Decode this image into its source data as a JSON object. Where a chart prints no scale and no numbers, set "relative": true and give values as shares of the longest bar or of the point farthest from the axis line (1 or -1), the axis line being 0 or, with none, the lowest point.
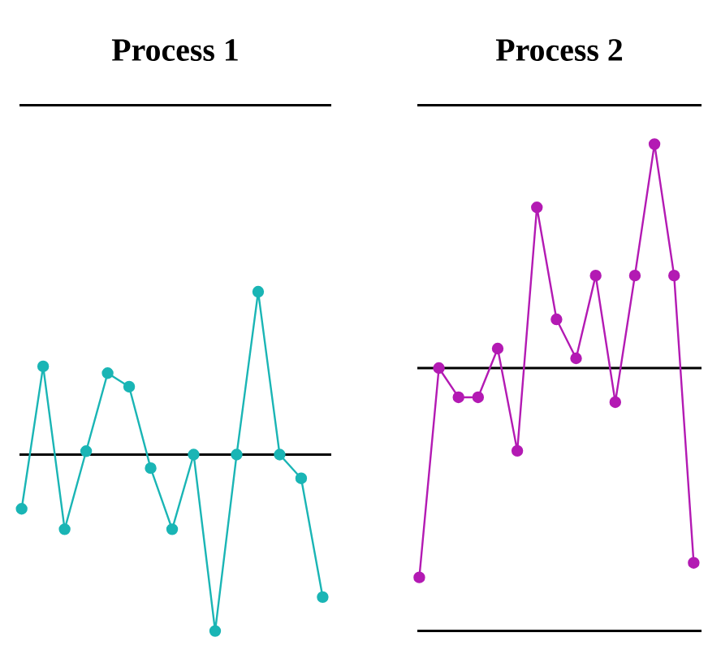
{
  "chart_data": [
    {
      "type": "line",
      "title": "Process 1",
      "categories": [
        null,
        null,
        null,
        null,
        null,
        null,
        null,
        null,
        null,
        null,
        null,
        null,
        null,
        null,
        null
      ],
      "relative": true,
      "marker": "circle",
      "line_style": "solid",
      "series": [
        {
          "color": "#1ab5b5",
          "values": [
            0.36,
            0.78,
            0.3,
            0.53,
            0.76,
            0.72,
            0.48,
            0.3,
            0.52,
            0,
            0.52,
            1,
            0.52,
            0.45,
            0.1
          ]
        }
      ],
      "ref_lines": [
        {
          "axis": "y",
          "value": 1.55,
          "color": "#000000"
        },
        {
          "axis": "y",
          "value": 0.52,
          "color": "#000000"
        }
      ]
    },
    {
      "type": "line",
      "title": "Process 2",
      "categories": [
        null,
        null,
        null,
        null,
        null,
        null,
        null,
        null,
        null,
        null,
        null,
        null,
        null,
        null,
        null
      ],
      "relative": true,
      "marker": "circle",
      "line_style": "solid",
      "series": [
        {
          "color": "#b31ab3",
          "values": [
            0.11,
            0.54,
            0.48,
            0.48,
            0.58,
            0.37,
            0.87,
            0.64,
            0.56,
            0.73,
            0.47,
            0.73,
            1,
            0.73,
            0.14
          ]
        }
      ],
      "ref_lines": [
        {
          "axis": "y",
          "value": 1.08,
          "color": "#000000"
        },
        {
          "axis": "y",
          "value": 0.54,
          "color": "#000000"
        },
        {
          "axis": "y",
          "value": 0,
          "color": "#000000"
        }
      ]
    }
  ]
}
